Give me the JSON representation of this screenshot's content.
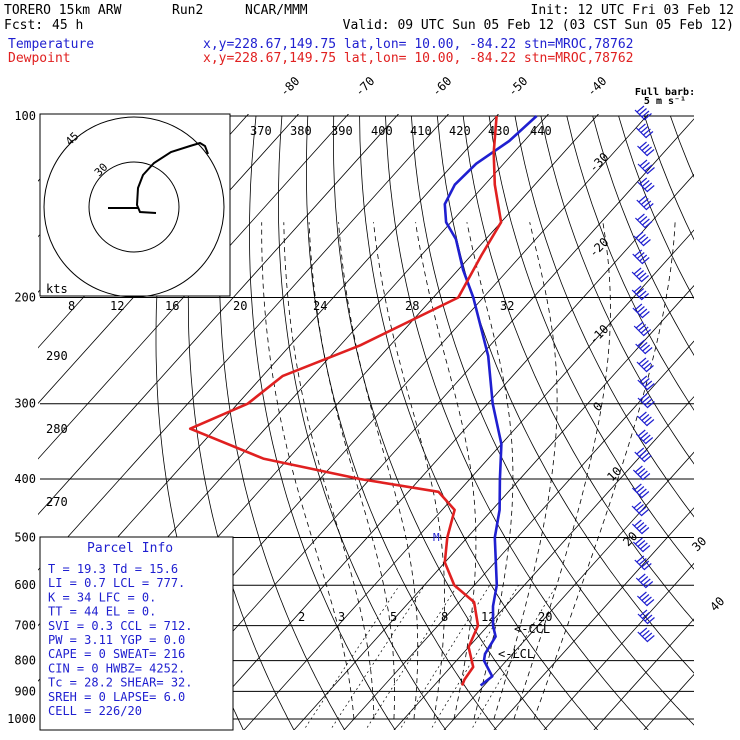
{
  "header": {
    "model": "TORERO  15km ARW",
    "run": "Run2",
    "center": "NCAR/MMM",
    "init": "Init: 12 UTC Fri 03 Feb 12",
    "fcst_label": "Fcst:",
    "fcst_hours": "45 h",
    "valid": "Valid: 09 UTC Sun 05 Feb 12 (03 CST Sun 05 Feb 12)",
    "temperature_label": "Temperature",
    "dewpoint_label": "Dewpoint",
    "location_line": "x,y=228.67,149.75   lat,lon= 10.00, -84.22  stn=MROC,78762",
    "barb_title": "Full barb:",
    "barb_units": "5 m s⁻¹"
  },
  "colors": {
    "temperature": "#1f1fd0",
    "dewpoint": "#e02020",
    "grid": "#000000",
    "parcel_text": "#1f1fd0"
  },
  "parcel_info": {
    "title": "Parcel Info",
    "rows": [
      "T  =    19.3  Td =  15.6",
      "LI =     0.7  LCL =  777.",
      "K  =      34  LFC =    0.",
      "TT =      44  EL  =    0.",
      "SVI =    0.3  CCL =  712.",
      "PW =    3.11  YGP =  0.0",
      "CAPE =     0  SWEAT=  216",
      "CIN =      0  HWBZ= 4252.",
      "Tc =    28.2  SHEAR=  32.",
      "SREH =     0  LAPSE=  6.0",
      "CELL = 226/20"
    ]
  },
  "hodograph": {
    "units_label": "kts",
    "ring_labels": [
      "45",
      "30"
    ]
  },
  "labels": {
    "lcl": "<-LCL",
    "ccl": "<-CCL",
    "shear_marker": "M"
  },
  "chart_data": {
    "type": "line",
    "title": "",
    "xlabel": "",
    "ylabel": "",
    "y_axis": "pressure (hPa), log scale",
    "ylim": [
      1000,
      100
    ],
    "pressure_ticks": [
      "100",
      "200",
      "300",
      "400",
      "500",
      "600",
      "700",
      "800",
      "900",
      "1000"
    ],
    "isotherm_labels": [
      "-80",
      "-70",
      "-60",
      "-50",
      "-40",
      "-30",
      "-20",
      "-10",
      "0",
      "10",
      "20",
      "30",
      "40"
    ],
    "theta_labels": [
      "370",
      "380",
      "390",
      "400",
      "410",
      "420",
      "430",
      "440"
    ],
    "theta_side_labels": [
      "290",
      "280",
      "270"
    ],
    "mixing_ratio_labels_upper": [
      "8",
      "12",
      "16",
      "20",
      "24",
      "28",
      "32"
    ],
    "mixing_ratio_labels_lower": [
      "2",
      "3",
      "5",
      "8",
      "12",
      "20"
    ],
    "series": [
      {
        "name": "Temperature",
        "points": [
          {
            "p": 880,
            "t": 19.3
          },
          {
            "p": 850,
            "t": 20.0
          },
          {
            "p": 800,
            "t": 15.5
          },
          {
            "p": 780,
            "t": 14.5
          },
          {
            "p": 730,
            "t": 13.5
          },
          {
            "p": 700,
            "t": 11.0
          },
          {
            "p": 650,
            "t": 7.5
          },
          {
            "p": 600,
            "t": 4.5
          },
          {
            "p": 500,
            "t": -4.5
          },
          {
            "p": 450,
            "t": -8.5
          },
          {
            "p": 400,
            "t": -14.0
          },
          {
            "p": 350,
            "t": -20.0
          },
          {
            "p": 300,
            "t": -29.0
          },
          {
            "p": 250,
            "t": -38.5
          },
          {
            "p": 200,
            "t": -52.0
          },
          {
            "p": 180,
            "t": -59.0
          },
          {
            "p": 160,
            "t": -66.0
          },
          {
            "p": 150,
            "t": -71.0
          },
          {
            "p": 140,
            "t": -74.5
          },
          {
            "p": 130,
            "t": -76.0
          },
          {
            "p": 120,
            "t": -75.5
          },
          {
            "p": 110,
            "t": -73.0
          },
          {
            "p": 100,
            "t": -72.0
          }
        ]
      },
      {
        "name": "Dewpoint",
        "points": [
          {
            "p": 880,
            "t": 15.6
          },
          {
            "p": 860,
            "t": 15.0
          },
          {
            "p": 820,
            "t": 14.5
          },
          {
            "p": 760,
            "t": 10.0
          },
          {
            "p": 700,
            "t": 8.0
          },
          {
            "p": 640,
            "t": 3.0
          },
          {
            "p": 600,
            "t": -4.0
          },
          {
            "p": 550,
            "t": -10.0
          },
          {
            "p": 500,
            "t": -14.0
          },
          {
            "p": 450,
            "t": -17.5
          },
          {
            "p": 420,
            "t": -24.0
          },
          {
            "p": 400,
            "t": -42.0
          },
          {
            "p": 370,
            "t": -65.0
          },
          {
            "p": 330,
            "t": -85.0
          },
          {
            "p": 300,
            "t": -78.0
          },
          {
            "p": 270,
            "t": -76.0
          },
          {
            "p": 240,
            "t": -66.0
          },
          {
            "p": 200,
            "t": -55.0
          },
          {
            "p": 170,
            "t": -58.0
          },
          {
            "p": 150,
            "t": -60.0
          },
          {
            "p": 130,
            "t": -68.0
          },
          {
            "p": 115,
            "t": -74.0
          },
          {
            "p": 100,
            "t": -80.0
          }
        ]
      }
    ]
  }
}
